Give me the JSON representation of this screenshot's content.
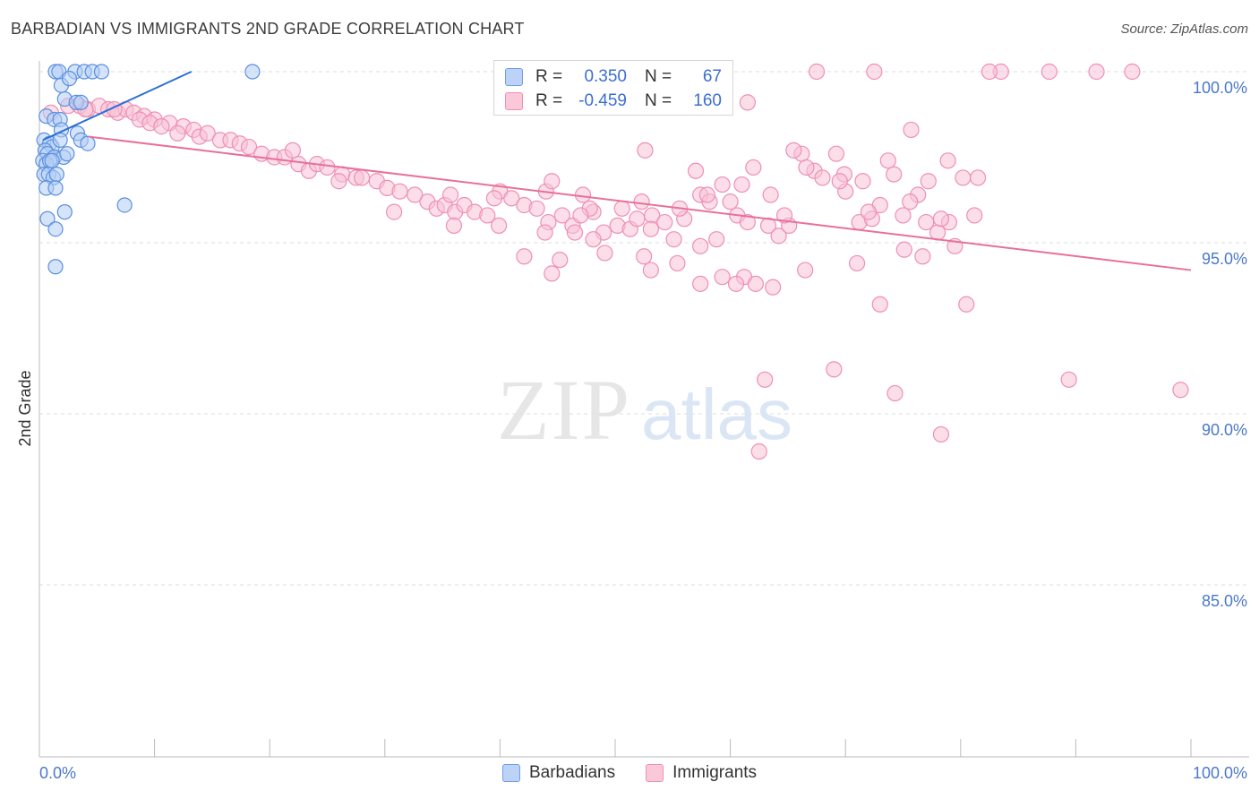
{
  "header": {
    "title": "BARBADIAN VS IMMIGRANTS 2ND GRADE CORRELATION CHART",
    "source": "Source: ZipAtlas.com"
  },
  "watermark": {
    "zip": "ZIP",
    "atlas": "atlas"
  },
  "legend": {
    "rows": [
      {
        "r_label": "R =",
        "r_value": "0.350",
        "n_label": "N =",
        "n_value": "67"
      },
      {
        "r_label": "R =",
        "r_value": "-0.459",
        "n_label": "N =",
        "n_value": "160"
      }
    ]
  },
  "bottom_legend": {
    "items": [
      "Barbadians",
      "Immigrants"
    ]
  },
  "chart_data": {
    "type": "scatter",
    "title": "BARBADIAN VS IMMIGRANTS 2ND GRADE CORRELATION CHART",
    "xlabel": "",
    "ylabel": "2nd Grade",
    "xlim": [
      0,
      100
    ],
    "ylim": [
      80,
      100.5
    ],
    "x_tick_labels": [
      "0.0%",
      "100.0%"
    ],
    "y_ticks": [
      {
        "value": 100,
        "label": "100.0%"
      },
      {
        "value": 95,
        "label": "95.0%"
      },
      {
        "value": 90,
        "label": "90.0%"
      },
      {
        "value": 85,
        "label": "85.0%"
      }
    ],
    "grid": true,
    "legend_position": "top-center",
    "colors": {
      "barbadians": "#5b8fe0",
      "barbadians_line": "#2a6fd6",
      "immigrants": "#f19cbc",
      "immigrants_line": "#e8709a"
    },
    "series": [
      {
        "name": "Barbadians",
        "r": 0.35,
        "n": 67,
        "trend": {
          "x": [
            0.3,
            13.2
          ],
          "y": [
            98.0,
            100.0
          ]
        },
        "points": [
          [
            1.4,
            100
          ],
          [
            1.7,
            100
          ],
          [
            3.1,
            100
          ],
          [
            3.9,
            100
          ],
          [
            4.6,
            100
          ],
          [
            5.4,
            100
          ],
          [
            18.5,
            100
          ],
          [
            1.9,
            99.6
          ],
          [
            2.6,
            99.8
          ],
          [
            2.2,
            99.2
          ],
          [
            3.2,
            99.1
          ],
          [
            3.6,
            99.1
          ],
          [
            0.6,
            98.7
          ],
          [
            1.3,
            98.6
          ],
          [
            1.8,
            98.6
          ],
          [
            1.9,
            98.3
          ],
          [
            3.3,
            98.2
          ],
          [
            3.6,
            98.0
          ],
          [
            0.4,
            98.0
          ],
          [
            0.9,
            97.9
          ],
          [
            1.1,
            97.8
          ],
          [
            0.5,
            97.7
          ],
          [
            0.7,
            97.6
          ],
          [
            1.3,
            97.5
          ],
          [
            1.8,
            98.0
          ],
          [
            2.1,
            97.5
          ],
          [
            2.4,
            97.6
          ],
          [
            4.2,
            97.9
          ],
          [
            0.3,
            97.4
          ],
          [
            0.6,
            97.3
          ],
          [
            0.9,
            97.4
          ],
          [
            1.1,
            97.4
          ],
          [
            0.4,
            97.0
          ],
          [
            0.8,
            97.0
          ],
          [
            1.2,
            96.9
          ],
          [
            1.5,
            97.0
          ],
          [
            0.6,
            96.6
          ],
          [
            1.4,
            96.6
          ],
          [
            0.7,
            95.7
          ],
          [
            1.4,
            95.4
          ],
          [
            2.2,
            95.9
          ],
          [
            7.4,
            96.1
          ],
          [
            1.4,
            94.3
          ]
        ]
      },
      {
        "name": "Immigrants",
        "r": -0.459,
        "n": 160,
        "trend": {
          "x": [
            4.3,
            100
          ],
          "y": [
            98.1,
            94.2
          ]
        },
        "points": [
          [
            1.0,
            98.8
          ],
          [
            2.5,
            99.0
          ],
          [
            3.5,
            99.0
          ],
          [
            4.2,
            98.9
          ],
          [
            5.2,
            99.0
          ],
          [
            6.0,
            98.9
          ],
          [
            6.8,
            98.8
          ],
          [
            7.5,
            98.9
          ],
          [
            8.2,
            98.8
          ],
          [
            9.1,
            98.7
          ],
          [
            10.0,
            98.6
          ],
          [
            11.3,
            98.5
          ],
          [
            12.5,
            98.4
          ],
          [
            13.4,
            98.3
          ],
          [
            4.0,
            98.9
          ],
          [
            6.5,
            98.9
          ],
          [
            8.7,
            98.6
          ],
          [
            9.6,
            98.5
          ],
          [
            10.6,
            98.4
          ],
          [
            12.0,
            98.2
          ],
          [
            13.9,
            98.1
          ],
          [
            14.6,
            98.2
          ],
          [
            15.7,
            98.0
          ],
          [
            16.6,
            98.0
          ],
          [
            17.4,
            97.9
          ],
          [
            18.2,
            97.8
          ],
          [
            19.3,
            97.6
          ],
          [
            20.4,
            97.5
          ],
          [
            21.3,
            97.5
          ],
          [
            22.5,
            97.3
          ],
          [
            23.4,
            97.1
          ],
          [
            24.1,
            97.3
          ],
          [
            25.0,
            97.2
          ],
          [
            26.3,
            97.0
          ],
          [
            27.5,
            96.9
          ],
          [
            28.0,
            96.9
          ],
          [
            29.3,
            96.8
          ],
          [
            30.2,
            96.6
          ],
          [
            31.3,
            96.5
          ],
          [
            32.6,
            96.4
          ],
          [
            33.7,
            96.2
          ],
          [
            34.5,
            96.0
          ],
          [
            35.2,
            96.1
          ],
          [
            36.1,
            95.9
          ],
          [
            36.9,
            96.1
          ],
          [
            37.8,
            95.9
          ],
          [
            38.9,
            95.8
          ],
          [
            40.0,
            96.5
          ],
          [
            41.0,
            96.3
          ],
          [
            42.1,
            96.1
          ],
          [
            43.2,
            96.0
          ],
          [
            44.2,
            95.6
          ],
          [
            45.4,
            95.8
          ],
          [
            46.3,
            95.5
          ],
          [
            47.2,
            96.4
          ],
          [
            48.1,
            95.9
          ],
          [
            49.0,
            95.3
          ],
          [
            50.2,
            95.5
          ],
          [
            51.3,
            95.4
          ],
          [
            52.3,
            96.2
          ],
          [
            53.2,
            95.8
          ],
          [
            54.3,
            95.6
          ],
          [
            55.1,
            95.1
          ],
          [
            56.0,
            95.7
          ],
          [
            57.4,
            96.4
          ],
          [
            58.2,
            96.2
          ],
          [
            59.3,
            96.7
          ],
          [
            60.6,
            95.8
          ],
          [
            61.5,
            95.6
          ],
          [
            62.0,
            97.2
          ],
          [
            63.3,
            95.5
          ],
          [
            64.2,
            95.2
          ],
          [
            65.1,
            95.5
          ],
          [
            66.2,
            97.6
          ],
          [
            67.3,
            97.1
          ],
          [
            68.0,
            96.9
          ],
          [
            69.2,
            97.6
          ],
          [
            70.0,
            96.5
          ],
          [
            71.2,
            95.6
          ],
          [
            72.3,
            95.7
          ],
          [
            73.0,
            96.1
          ],
          [
            74.2,
            97.0
          ],
          [
            75.0,
            95.8
          ],
          [
            76.3,
            96.4
          ],
          [
            77.2,
            96.8
          ],
          [
            78.0,
            95.3
          ],
          [
            79.0,
            95.6
          ],
          [
            80.2,
            96.9
          ],
          [
            81.2,
            95.8
          ],
          [
            22.0,
            97.7
          ],
          [
            26.0,
            96.8
          ],
          [
            30.8,
            95.9
          ],
          [
            35.7,
            96.4
          ],
          [
            39.5,
            96.3
          ],
          [
            43.9,
            95.3
          ],
          [
            47.8,
            96.0
          ],
          [
            51.9,
            95.7
          ],
          [
            55.6,
            96.0
          ],
          [
            58.8,
            95.1
          ],
          [
            61.0,
            96.7
          ],
          [
            64.7,
            95.8
          ],
          [
            44.0,
            96.5
          ],
          [
            47.0,
            95.8
          ],
          [
            50.6,
            96.0
          ],
          [
            57.0,
            97.1
          ],
          [
            60.0,
            96.2
          ],
          [
            66.6,
            97.2
          ],
          [
            69.9,
            97.0
          ],
          [
            73.7,
            97.4
          ],
          [
            78.3,
            95.7
          ],
          [
            36.0,
            95.5
          ],
          [
            39.9,
            95.5
          ],
          [
            42.1,
            94.6
          ],
          [
            44.5,
            94.1
          ],
          [
            45.2,
            94.5
          ],
          [
            46.5,
            95.3
          ],
          [
            48.1,
            95.1
          ],
          [
            49.1,
            94.7
          ],
          [
            52.5,
            94.6
          ],
          [
            53.1,
            94.2
          ],
          [
            57.4,
            94.9
          ],
          [
            59.3,
            94.0
          ],
          [
            61.2,
            94.0
          ],
          [
            66.5,
            94.2
          ],
          [
            71.0,
            94.4
          ],
          [
            75.1,
            94.8
          ],
          [
            77.0,
            95.6
          ],
          [
            79.5,
            94.9
          ],
          [
            44.5,
            96.8
          ],
          [
            58.0,
            96.4
          ],
          [
            63.5,
            96.4
          ],
          [
            69.5,
            96.8
          ],
          [
            72.0,
            95.9
          ],
          [
            75.6,
            96.2
          ],
          [
            76.7,
            94.6
          ],
          [
            57.4,
            93.8
          ],
          [
            60.5,
            93.8
          ],
          [
            62.2,
            93.8
          ],
          [
            63.7,
            93.7
          ],
          [
            73.0,
            93.2
          ],
          [
            80.5,
            93.2
          ],
          [
            55.4,
            94.4
          ],
          [
            53.1,
            95.4
          ],
          [
            63.0,
            91.0
          ],
          [
            69.0,
            91.3
          ],
          [
            74.3,
            90.6
          ],
          [
            89.4,
            91.0
          ],
          [
            99.1,
            90.7
          ],
          [
            62.5,
            88.9
          ],
          [
            78.3,
            89.4
          ],
          [
            52.6,
            97.7
          ],
          [
            65.5,
            97.7
          ],
          [
            71.5,
            96.8
          ],
          [
            75.7,
            98.3
          ],
          [
            78.9,
            97.4
          ],
          [
            81.5,
            96.9
          ],
          [
            67.5,
            100
          ],
          [
            72.5,
            100
          ],
          [
            83.5,
            100
          ],
          [
            82.5,
            100
          ],
          [
            87.7,
            100
          ],
          [
            91.8,
            100
          ],
          [
            94.9,
            100
          ],
          [
            61.5,
            99.1
          ]
        ]
      }
    ]
  }
}
